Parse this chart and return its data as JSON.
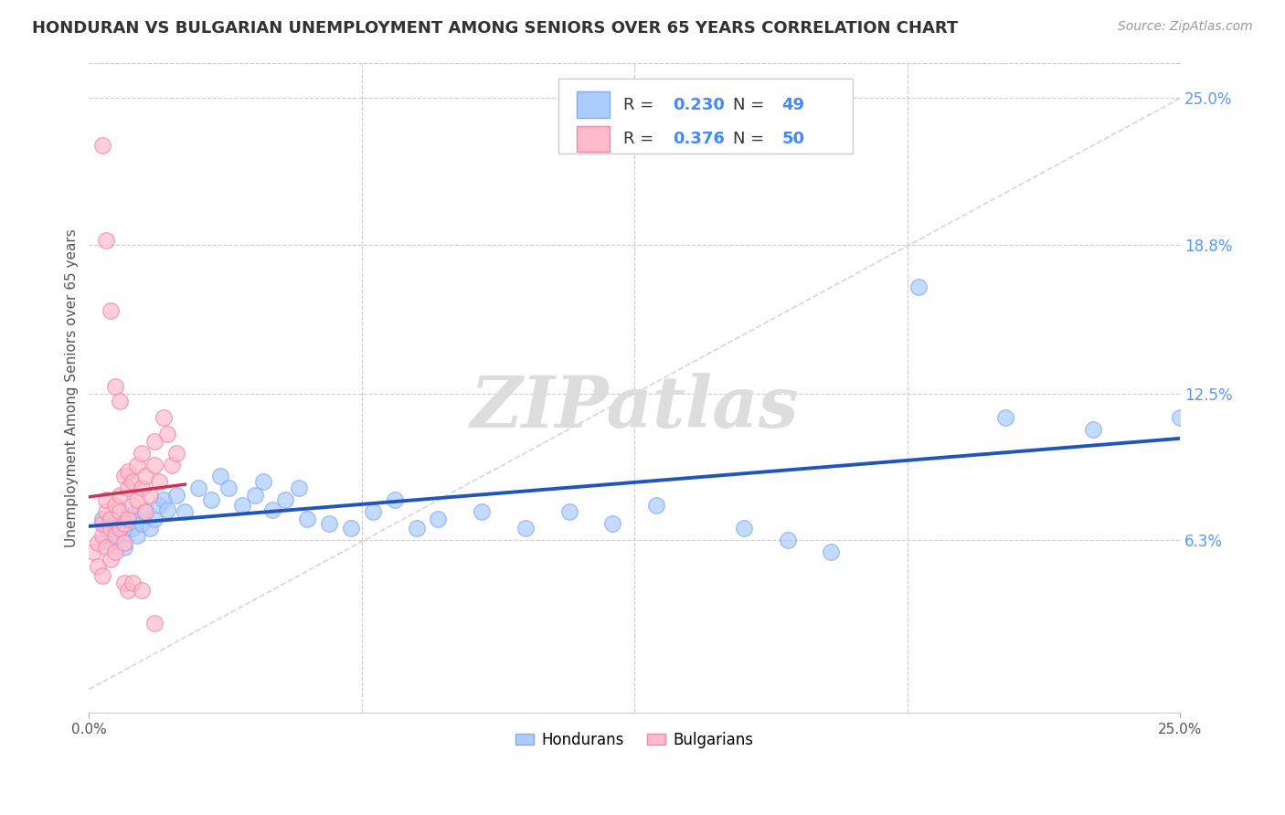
{
  "title": "HONDURAN VS BULGARIAN UNEMPLOYMENT AMONG SENIORS OVER 65 YEARS CORRELATION CHART",
  "source": "Source: ZipAtlas.com",
  "ylabel": "Unemployment Among Seniors over 65 years",
  "xlim": [
    0.0,
    0.25
  ],
  "ylim": [
    -0.01,
    0.265
  ],
  "ytick_vals": [
    0.063,
    0.125,
    0.188,
    0.25
  ],
  "ytick_labels": [
    "6.3%",
    "12.5%",
    "18.8%",
    "25.0%"
  ],
  "xtick_vals": [
    0.0,
    0.25
  ],
  "xtick_labels": [
    "0.0%",
    "25.0%"
  ],
  "xtick_minor_vals": [
    0.0625,
    0.125,
    0.1875
  ],
  "grid_color": "#cccccc",
  "background_color": "#ffffff",
  "honduran_color": "#aaccff",
  "honduran_edge_color": "#88aaee",
  "bulgarian_color": "#ffbbcc",
  "bulgarian_edge_color": "#ee88aa",
  "honduran_line_color": "#2255bb",
  "bulgarian_line_color": "#cc3355",
  "diagonal_color": "#cccccc",
  "R_honduran": 0.23,
  "N_honduran": 49,
  "R_bulgarian": 0.376,
  "N_bulgarian": 50,
  "legend_box_color": "#ffffff",
  "legend_box_edge": "#cccccc",
  "legend_text_color": "#333333",
  "legend_value_color": "#4488ff",
  "watermark": "ZIPatlas",
  "watermark_color": "#dddddd",
  "honduran_points": [
    [
      0.003,
      0.072
    ],
    [
      0.004,
      0.068
    ],
    [
      0.005,
      0.062
    ],
    [
      0.006,
      0.065
    ],
    [
      0.007,
      0.07
    ],
    [
      0.008,
      0.06
    ],
    [
      0.008,
      0.066
    ],
    [
      0.009,
      0.073
    ],
    [
      0.01,
      0.068
    ],
    [
      0.01,
      0.074
    ],
    [
      0.011,
      0.065
    ],
    [
      0.012,
      0.07
    ],
    [
      0.013,
      0.075
    ],
    [
      0.014,
      0.068
    ],
    [
      0.015,
      0.072
    ],
    [
      0.016,
      0.078
    ],
    [
      0.017,
      0.08
    ],
    [
      0.018,
      0.076
    ],
    [
      0.02,
      0.082
    ],
    [
      0.022,
      0.075
    ],
    [
      0.025,
      0.085
    ],
    [
      0.028,
      0.08
    ],
    [
      0.03,
      0.09
    ],
    [
      0.032,
      0.085
    ],
    [
      0.035,
      0.078
    ],
    [
      0.038,
      0.082
    ],
    [
      0.04,
      0.088
    ],
    [
      0.042,
      0.076
    ],
    [
      0.045,
      0.08
    ],
    [
      0.048,
      0.085
    ],
    [
      0.05,
      0.072
    ],
    [
      0.055,
      0.07
    ],
    [
      0.06,
      0.068
    ],
    [
      0.065,
      0.075
    ],
    [
      0.07,
      0.08
    ],
    [
      0.075,
      0.068
    ],
    [
      0.08,
      0.072
    ],
    [
      0.09,
      0.075
    ],
    [
      0.1,
      0.068
    ],
    [
      0.11,
      0.075
    ],
    [
      0.12,
      0.07
    ],
    [
      0.13,
      0.078
    ],
    [
      0.15,
      0.068
    ],
    [
      0.16,
      0.063
    ],
    [
      0.17,
      0.058
    ],
    [
      0.19,
      0.17
    ],
    [
      0.21,
      0.115
    ],
    [
      0.23,
      0.11
    ],
    [
      0.25,
      0.115
    ]
  ],
  "bulgarian_points": [
    [
      0.001,
      0.058
    ],
    [
      0.002,
      0.052
    ],
    [
      0.002,
      0.062
    ],
    [
      0.003,
      0.048
    ],
    [
      0.003,
      0.065
    ],
    [
      0.003,
      0.07
    ],
    [
      0.004,
      0.06
    ],
    [
      0.004,
      0.075
    ],
    [
      0.004,
      0.08
    ],
    [
      0.005,
      0.068
    ],
    [
      0.005,
      0.072
    ],
    [
      0.005,
      0.055
    ],
    [
      0.006,
      0.078
    ],
    [
      0.006,
      0.065
    ],
    [
      0.006,
      0.058
    ],
    [
      0.007,
      0.068
    ],
    [
      0.007,
      0.075
    ],
    [
      0.007,
      0.082
    ],
    [
      0.008,
      0.062
    ],
    [
      0.008,
      0.07
    ],
    [
      0.008,
      0.09
    ],
    [
      0.009,
      0.072
    ],
    [
      0.009,
      0.085
    ],
    [
      0.009,
      0.092
    ],
    [
      0.01,
      0.078
    ],
    [
      0.01,
      0.088
    ],
    [
      0.011,
      0.08
    ],
    [
      0.011,
      0.095
    ],
    [
      0.012,
      0.085
    ],
    [
      0.012,
      0.1
    ],
    [
      0.013,
      0.09
    ],
    [
      0.013,
      0.075
    ],
    [
      0.014,
      0.082
    ],
    [
      0.015,
      0.095
    ],
    [
      0.015,
      0.105
    ],
    [
      0.016,
      0.088
    ],
    [
      0.017,
      0.115
    ],
    [
      0.018,
      0.108
    ],
    [
      0.019,
      0.095
    ],
    [
      0.02,
      0.1
    ],
    [
      0.003,
      0.23
    ],
    [
      0.004,
      0.19
    ],
    [
      0.005,
      0.16
    ],
    [
      0.006,
      0.128
    ],
    [
      0.007,
      0.122
    ],
    [
      0.008,
      0.045
    ],
    [
      0.009,
      0.042
    ],
    [
      0.01,
      0.045
    ],
    [
      0.012,
      0.042
    ],
    [
      0.015,
      0.028
    ]
  ]
}
